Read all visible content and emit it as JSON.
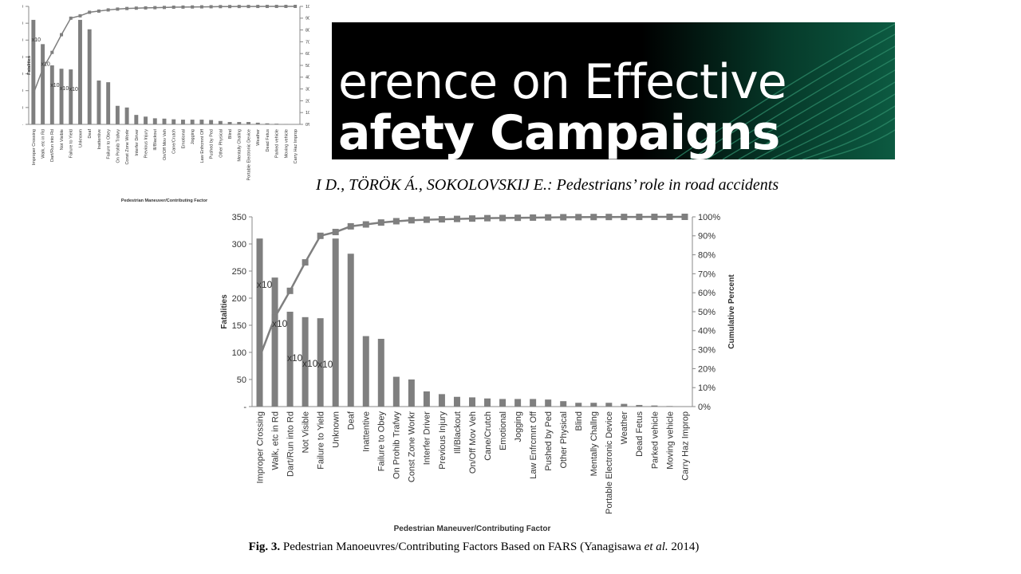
{
  "banner": {
    "line1": "erence on Effective",
    "line2": "afety Campaigns"
  },
  "header_line": "I D., TÖRÖK Á., SOKOLOVSKIJ E.: Pedestrians’ role in road accidents",
  "caption": {
    "fig": "Fig. 3.",
    "text_main": " Pedestrian Manoeuvres/Contributing Factors Based on FARS (Yanagisawa ",
    "text_etal": "et al.",
    "text_year": " 2014)"
  },
  "colors": {
    "bar": "#7f7f7f",
    "line": "#7f7f7f",
    "banner_bg": "#000000",
    "banner_accent": "#0f6b4f"
  },
  "chart_data": [
    {
      "type": "bar",
      "categories": [
        "Improper Crossing",
        "Walk, etc in Rd",
        "Dart/Run into Rd",
        "Not Visible",
        "Failure to Yield",
        "Unknown",
        "Deaf",
        "Inattentive",
        "Failure to Obey",
        "On Prohib Trafwy",
        "Const Zone Workr",
        "Interfer Driver",
        "Previous Injury",
        "Ill/Blackout",
        "On/Off Mov Veh",
        "Cane/Crutch",
        "Emotional",
        "Jogging",
        "Law Enfrcmnt Off",
        "Pushed by Ped",
        "Other Physical",
        "Blind",
        "Mentally Challng",
        "Portable Electronic Device",
        "Weather",
        "Dead Fetus",
        "Parked vehicle",
        "Moving vehicle",
        "Carry Haz Improp"
      ],
      "values": [
        310,
        238,
        175,
        165,
        163,
        310,
        282,
        130,
        125,
        55,
        50,
        28,
        23,
        18,
        17,
        15,
        14,
        14,
        14,
        13,
        10,
        7,
        7,
        7,
        5,
        3,
        2,
        1,
        0
      ],
      "bar_annotations": [
        {
          "index": 0,
          "text": "x10"
        },
        {
          "index": 1,
          "text": "x10"
        },
        {
          "index": 2,
          "text": "x10"
        },
        {
          "index": 3,
          "text": "x10"
        },
        {
          "index": 4,
          "text": "x10"
        }
      ],
      "series": [
        {
          "values": [
            310,
            238,
            175,
            165,
            163,
            310,
            282,
            130,
            125,
            55,
            50,
            28,
            23,
            18,
            17,
            15,
            14,
            14,
            14,
            13,
            10,
            7,
            7,
            7,
            5,
            3,
            2,
            1,
            0
          ]
        },
        {
          "values": [
            26,
            47,
            61,
            76,
            90,
            92,
            95,
            96,
            97,
            97.7,
            98.2,
            98.5,
            98.7,
            98.9,
            99.1,
            99.3,
            99.4,
            99.5,
            99.6,
            99.7,
            99.8,
            99.85,
            99.9,
            99.92,
            99.95,
            99.97,
            99.98,
            99.99,
            100
          ]
        }
      ],
      "xlabel": "Pedestrian Maneuver/Contributing Factor",
      "ylabel": "Fatalities",
      "y2label": "Cumulative Percent",
      "ylim": [
        0,
        350
      ],
      "y2lim": [
        0,
        100
      ],
      "y_ticks": [
        "-",
        "50",
        "100",
        "150",
        "200",
        "250",
        "300",
        "350"
      ],
      "y2_ticks": [
        "0%",
        "10%",
        "20%",
        "30%",
        "40%",
        "50%",
        "60%",
        "70%",
        "80%",
        "90%",
        "100%"
      ],
      "grid": false
    },
    {
      "type": "bar",
      "categories": [
        "Improper Crossing",
        "Walk, etc in Rd",
        "Dart/Run into Rd",
        "Not Visible",
        "Failure to Yield",
        "Unknown",
        "Deaf",
        "Inattentive",
        "Failure to Obey",
        "On Prohib Trafwy",
        "Const Zone Workr",
        "Interfer Driver",
        "Previous Injury",
        "Ill/Blackout",
        "On/Off Mov Veh",
        "Cane/Crutch",
        "Emotional",
        "Jogging",
        "Law Enfrcmnt Off",
        "Pushed by Ped",
        "Other Physical",
        "Blind",
        "Mentally Challng",
        "Portable Electronic Device",
        "Weather",
        "Dead Fetus",
        "Parked vehicle",
        "Moving vehicle",
        "Carry Haz Improp"
      ],
      "values": [
        310,
        238,
        175,
        165,
        163,
        310,
        282,
        130,
        125,
        55,
        50,
        28,
        23,
        18,
        17,
        15,
        14,
        14,
        14,
        13,
        10,
        7,
        7,
        7,
        5,
        3,
        2,
        1,
        0
      ],
      "bar_annotations": [
        {
          "index": 0,
          "text": "x10"
        },
        {
          "index": 1,
          "text": "x10"
        },
        {
          "index": 2,
          "text": "x10"
        },
        {
          "index": 3,
          "text": "x10"
        },
        {
          "index": 4,
          "text": "x10"
        }
      ],
      "series": [
        {
          "values": [
            310,
            238,
            175,
            165,
            163,
            310,
            282,
            130,
            125,
            55,
            50,
            28,
            23,
            18,
            17,
            15,
            14,
            14,
            14,
            13,
            10,
            7,
            7,
            7,
            5,
            3,
            2,
            1,
            0
          ]
        },
        {
          "values": [
            26,
            47,
            61,
            76,
            90,
            92,
            95,
            96,
            97,
            97.7,
            98.2,
            98.5,
            98.7,
            98.9,
            99.1,
            99.3,
            99.4,
            99.5,
            99.6,
            99.7,
            99.8,
            99.85,
            99.9,
            99.92,
            99.95,
            99.97,
            99.98,
            99.99,
            100
          ]
        }
      ],
      "xlabel": "Pedestrian Maneuver/Contributing Factor",
      "ylabel": "Fatalities",
      "y2label": "Cumulative Percent",
      "ylim": [
        0,
        350
      ],
      "y2lim": [
        0,
        100
      ],
      "y_ticks": [
        "-",
        "50",
        "100",
        "150",
        "200",
        "250",
        "300",
        "350"
      ],
      "y2_ticks": [
        "0%",
        "10%",
        "20%",
        "30%",
        "40%",
        "50%",
        "60%",
        "70%",
        "80%",
        "90%",
        "100%"
      ],
      "grid": false
    }
  ]
}
